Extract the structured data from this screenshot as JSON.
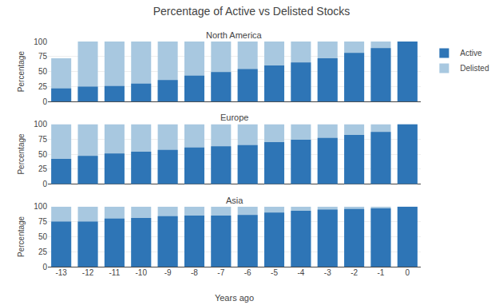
{
  "title": "Percentage of Active vs Delisted Stocks",
  "chart_data": [
    {
      "type": "bar",
      "title": "North America",
      "categories": [
        "-13",
        "-12",
        "-11",
        "-10",
        "-9",
        "-8",
        "-7",
        "-6",
        "-5",
        "-4",
        "-3",
        "-2",
        "-1",
        "0"
      ],
      "series": [
        {
          "name": "Active",
          "color": "#2e75b6",
          "values": [
            22,
            25,
            26,
            30,
            36,
            43,
            49,
            54,
            60,
            65,
            72,
            81,
            89,
            100
          ]
        },
        {
          "name": "Delisted",
          "color": "#a8c8e0",
          "values": [
            72,
            100,
            100,
            100,
            100,
            100,
            100,
            100,
            100,
            100,
            100,
            100,
            100,
            100
          ]
        }
      ],
      "ylabel": "Percentage",
      "ylim": [
        0,
        100
      ],
      "yticks": [
        0,
        25,
        50,
        75,
        100
      ],
      "grid": true,
      "legend": "upper right",
      "tick_labels": "y"
    },
    {
      "type": "bar",
      "title": "Europe",
      "categories": [
        "-13",
        "-12",
        "-11",
        "-10",
        "-9",
        "-8",
        "-7",
        "-6",
        "-5",
        "-4",
        "-3",
        "-2",
        "-1",
        "0"
      ],
      "series": [
        {
          "name": "Active",
          "color": "#2e75b6",
          "values": [
            42,
            47,
            51,
            54,
            57,
            61,
            63,
            65,
            70,
            74,
            77,
            82,
            87,
            100
          ]
        },
        {
          "name": "Delisted",
          "color": "#a8c8e0",
          "values": [
            100,
            100,
            100,
            100,
            100,
            100,
            100,
            100,
            100,
            100,
            100,
            100,
            100,
            100
          ]
        }
      ],
      "ylabel": "Percentage",
      "ylim": [
        0,
        100
      ],
      "yticks": [
        0,
        25,
        50,
        75,
        100
      ],
      "grid": true,
      "tick_labels": "y"
    },
    {
      "type": "bar",
      "title": "Asia",
      "categories": [
        "-13",
        "-12",
        "-11",
        "-10",
        "-9",
        "-8",
        "-7",
        "-6",
        "-5",
        "-4",
        "-3",
        "-2",
        "-1",
        "0"
      ],
      "series": [
        {
          "name": "Active",
          "color": "#2e75b6",
          "values": [
            75,
            75,
            80,
            81,
            84,
            85,
            85,
            86,
            90,
            93,
            95,
            96,
            97,
            100
          ]
        },
        {
          "name": "Delisted",
          "color": "#a8c8e0",
          "values": [
            100,
            100,
            100,
            100,
            100,
            100,
            100,
            100,
            100,
            100,
            100,
            100,
            100,
            100
          ]
        }
      ],
      "xlabel": "Years ago",
      "ylabel": "Percentage",
      "ylim": [
        0,
        100
      ],
      "yticks": [
        0,
        25,
        50,
        75,
        100
      ],
      "grid": true
    }
  ]
}
